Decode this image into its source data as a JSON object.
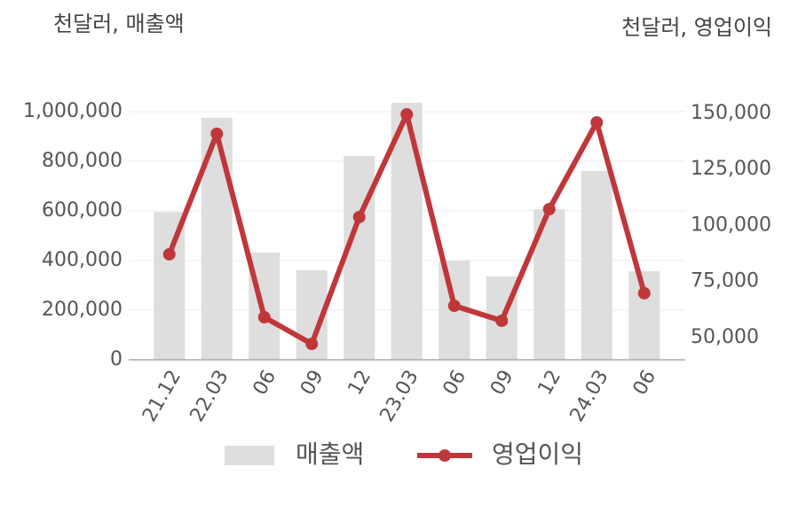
{
  "chart_data": {
    "type": "bar-line",
    "y_label": "천달러, 매출액",
    "y2_label": "천달러, 영업이익",
    "categories": [
      "21.12",
      "22.03",
      "06",
      "09",
      "12",
      "23.03",
      "06",
      "09",
      "12",
      "24.03",
      "06"
    ],
    "series": [
      {
        "name": "매출액",
        "type": "bar",
        "color": "#dedede",
        "values": [
          596000,
          975000,
          432000,
          361000,
          821000,
          1036000,
          400000,
          336000,
          607000,
          761000,
          357000
        ]
      },
      {
        "name": "영업이익",
        "type": "line",
        "axis": "y2",
        "color": "#c0373a",
        "values": [
          87150,
          140900,
          59100,
          47200,
          103750,
          149600,
          64200,
          57500,
          107300,
          146000,
          69800
        ]
      }
    ],
    "ylim": [
      0,
      1100000
    ],
    "yticks": [
      0,
      {
        "value": 200000,
        "label": "200,000"
      },
      {
        "value": 400000,
        "label": "400,000"
      },
      {
        "value": 600000,
        "label": "600,000"
      },
      {
        "value": 800000,
        "label": "800,000"
      },
      {
        "value": 1000000,
        "label": "1,000,000"
      }
    ],
    "y2lim": [
      40100,
      161850
    ],
    "y2ticks": [
      {
        "value": 50000,
        "label": "50,000"
      },
      {
        "value": 75000,
        "label": "75,000"
      },
      {
        "value": 100000,
        "label": "100,000"
      },
      {
        "value": 125000,
        "label": "125,000"
      },
      {
        "value": 150000,
        "label": "150,000"
      }
    ],
    "grid": true
  }
}
